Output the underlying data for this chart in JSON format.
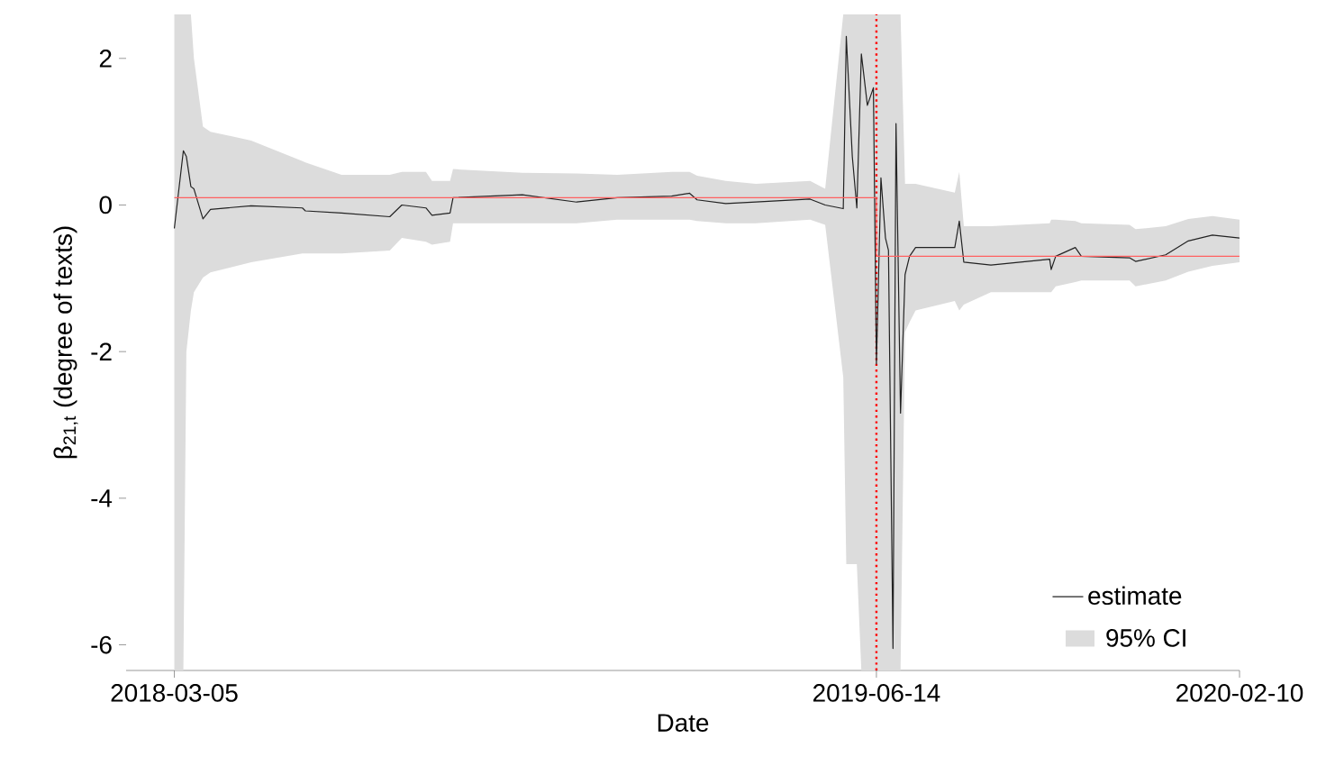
{
  "chart_data": {
    "type": "line",
    "xlabel": "Date",
    "ylabel": "β$_{21,t}$ (degree of texts)",
    "x": [
      "2018-03-05",
      "2018-03-11",
      "2018-03-13",
      "2018-03-16",
      "2018-03-18",
      "2018-03-24",
      "2018-03-29",
      "2018-04-25",
      "2018-05-29",
      "2018-05-31",
      "2018-06-24",
      "2018-07-26",
      "2018-08-03",
      "2018-08-19",
      "2018-08-23",
      "2018-09-04",
      "2018-09-06",
      "2018-10-22",
      "2018-11-27",
      "2018-12-24",
      "2019-01-29",
      "2019-02-10",
      "2019-02-15",
      "2019-03-06",
      "2019-03-26",
      "2019-05-01",
      "2019-05-11",
      "2019-05-23",
      "2019-05-25",
      "2019-05-29",
      "2019-06-01",
      "2019-06-04",
      "2019-06-08",
      "2019-06-12",
      "2019-06-14",
      "2019-06-17",
      "2019-06-20",
      "2019-06-22",
      "2019-06-25",
      "2019-06-27",
      "2019-06-30",
      "2019-07-03",
      "2019-07-06",
      "2019-07-10",
      "2019-08-05",
      "2019-08-08",
      "2019-08-11",
      "2019-08-29",
      "2019-10-07",
      "2019-10-08",
      "2019-10-11",
      "2019-10-24",
      "2019-10-28",
      "2019-11-29",
      "2019-12-03",
      "2019-12-23",
      "2020-01-07",
      "2020-01-23",
      "2020-02-10"
    ],
    "series": [
      {
        "name": "estimate",
        "color": "#222222",
        "values": [
          -0.32,
          0.74,
          0.66,
          0.25,
          0.22,
          -0.19,
          -0.06,
          -0.01,
          -0.04,
          -0.08,
          -0.11,
          -0.16,
          0.0,
          -0.04,
          -0.14,
          -0.11,
          0.1,
          0.14,
          0.04,
          0.1,
          0.12,
          0.16,
          0.07,
          0.02,
          0.04,
          0.08,
          0.0,
          -0.05,
          2.3,
          0.66,
          -0.04,
          2.06,
          1.36,
          1.6,
          -2.17,
          0.37,
          -0.45,
          -0.62,
          -6.05,
          1.11,
          -2.84,
          -0.95,
          -0.7,
          -0.58,
          -0.58,
          -0.22,
          -0.78,
          -0.82,
          -0.74,
          -0.88,
          -0.7,
          -0.58,
          -0.7,
          -0.72,
          -0.77,
          -0.68,
          -0.49,
          -0.41,
          -0.45
        ],
        "lower": [
          -6.35,
          -6.35,
          -2.0,
          -1.44,
          -1.19,
          -0.99,
          -0.92,
          -0.78,
          -0.66,
          -0.66,
          -0.66,
          -0.62,
          -0.45,
          -0.5,
          -0.54,
          -0.5,
          -0.25,
          -0.25,
          -0.25,
          -0.2,
          -0.2,
          -0.2,
          -0.22,
          -0.25,
          -0.25,
          -0.2,
          -0.27,
          -2.35,
          -4.9,
          -4.9,
          -4.9,
          -6.35,
          -6.35,
          -6.35,
          -6.35,
          -6.35,
          -6.35,
          -6.35,
          -6.35,
          -6.35,
          -6.35,
          -1.73,
          -1.6,
          -1.44,
          -1.31,
          -1.44,
          -1.36,
          -1.19,
          -1.19,
          -1.19,
          -1.11,
          -1.05,
          -1.03,
          -1.03,
          -1.11,
          -1.03,
          -0.91,
          -0.83,
          -0.78
        ],
        "upper": [
          2.6,
          2.6,
          2.6,
          2.6,
          2.0,
          1.07,
          1.0,
          0.88,
          0.6,
          0.58,
          0.41,
          0.41,
          0.45,
          0.45,
          0.33,
          0.33,
          0.49,
          0.44,
          0.43,
          0.41,
          0.45,
          0.45,
          0.4,
          0.33,
          0.29,
          0.33,
          0.22,
          2.6,
          2.6,
          2.6,
          2.6,
          2.6,
          2.6,
          2.6,
          2.6,
          2.6,
          2.6,
          2.6,
          2.6,
          2.6,
          2.6,
          0.29,
          0.29,
          0.29,
          0.17,
          0.45,
          -0.29,
          -0.29,
          -0.25,
          -0.2,
          -0.2,
          -0.22,
          -0.25,
          -0.27,
          -0.33,
          -0.29,
          -0.19,
          -0.15,
          -0.2
        ]
      },
      {
        "type": "line",
        "color": "#ff6060",
        "x": [
          "2018-03-05",
          "2019-06-14",
          "2019-06-14",
          "2019-06-14",
          "2020-02-10"
        ],
        "values": [
          0.1,
          0.1,
          -0.7,
          -0.7,
          -0.7
        ]
      }
    ],
    "annotations": [
      "95% CI"
    ],
    "ref_lines": [
      {
        "axis": "x",
        "value": "2019-06-14",
        "color": "#ff0000",
        "line_style": "dotted"
      }
    ],
    "xlim": [
      "2018-02-01",
      "2020-02-10"
    ],
    "xticks": [
      "2018-03-05",
      "2019-06-14",
      "2020-02-10"
    ],
    "ylim": [
      -6.35,
      2.6
    ],
    "yticks": [
      -6,
      -4,
      -2,
      0,
      2
    ],
    "legend": "bottom right",
    "line_style": "solid",
    "marker": "none"
  }
}
